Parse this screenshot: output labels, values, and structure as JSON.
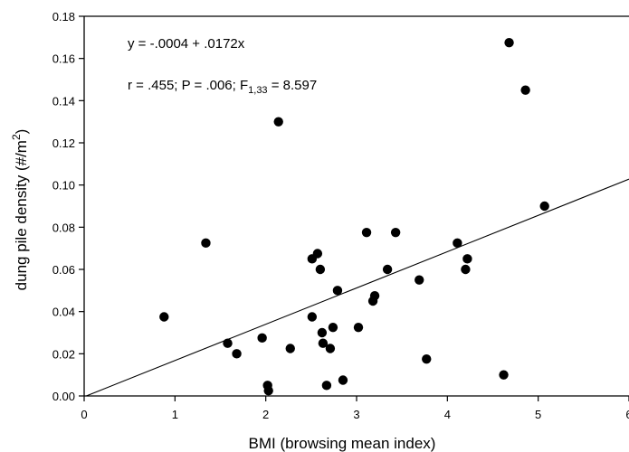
{
  "chart_data": {
    "type": "scatter",
    "xlabel": "BMI (browsing mean index)",
    "ylabel_main": "dung pile density (#/m",
    "ylabel_sup": "2",
    "ylabel_close": ")",
    "xlim": [
      0,
      6
    ],
    "ylim": [
      0,
      0.18
    ],
    "x_ticks": [
      0,
      1,
      2,
      3,
      4,
      5,
      6
    ],
    "x_tick_labels": [
      "0",
      "1",
      "2",
      "3",
      "4",
      "5",
      "6"
    ],
    "y_ticks": [
      0,
      0.02,
      0.04,
      0.06,
      0.08,
      0.1,
      0.12,
      0.14,
      0.16,
      0.18
    ],
    "y_tick_labels": [
      "0.00",
      "0.02",
      "0.04",
      "0.06",
      "0.08",
      "0.10",
      "0.12",
      "0.14",
      "0.16",
      "0.18"
    ],
    "grid": false,
    "annotations": {
      "equation": "y = -.0004 + .0172x",
      "stats_prefix": "r = .455; P = .006; F",
      "stats_sub": "1,33",
      "stats_suffix": " = 8.597"
    },
    "regression": {
      "intercept": -0.0004,
      "slope": 0.0172
    },
    "points": [
      {
        "x": 0.88,
        "y": 0.0375
      },
      {
        "x": 1.34,
        "y": 0.0725
      },
      {
        "x": 1.58,
        "y": 0.025
      },
      {
        "x": 1.68,
        "y": 0.02
      },
      {
        "x": 1.96,
        "y": 0.0275
      },
      {
        "x": 2.02,
        "y": 0.005
      },
      {
        "x": 2.03,
        "y": 0.0025
      },
      {
        "x": 2.14,
        "y": 0.13
      },
      {
        "x": 2.27,
        "y": 0.0225
      },
      {
        "x": 2.51,
        "y": 0.065
      },
      {
        "x": 2.51,
        "y": 0.0375
      },
      {
        "x": 2.57,
        "y": 0.0675
      },
      {
        "x": 2.6,
        "y": 0.06
      },
      {
        "x": 2.62,
        "y": 0.03
      },
      {
        "x": 2.63,
        "y": 0.025
      },
      {
        "x": 2.67,
        "y": 0.005
      },
      {
        "x": 2.71,
        "y": 0.0225
      },
      {
        "x": 2.74,
        "y": 0.0325
      },
      {
        "x": 2.79,
        "y": 0.05
      },
      {
        "x": 2.85,
        "y": 0.0075
      },
      {
        "x": 3.02,
        "y": 0.0325
      },
      {
        "x": 3.11,
        "y": 0.0775
      },
      {
        "x": 3.18,
        "y": 0.045
      },
      {
        "x": 3.2,
        "y": 0.0475
      },
      {
        "x": 3.34,
        "y": 0.06
      },
      {
        "x": 3.43,
        "y": 0.0775
      },
      {
        "x": 3.69,
        "y": 0.055
      },
      {
        "x": 3.77,
        "y": 0.0175
      },
      {
        "x": 4.11,
        "y": 0.0725
      },
      {
        "x": 4.2,
        "y": 0.06
      },
      {
        "x": 4.22,
        "y": 0.065
      },
      {
        "x": 4.62,
        "y": 0.01
      },
      {
        "x": 4.68,
        "y": 0.1675
      },
      {
        "x": 4.86,
        "y": 0.145
      },
      {
        "x": 5.07,
        "y": 0.09
      }
    ]
  }
}
